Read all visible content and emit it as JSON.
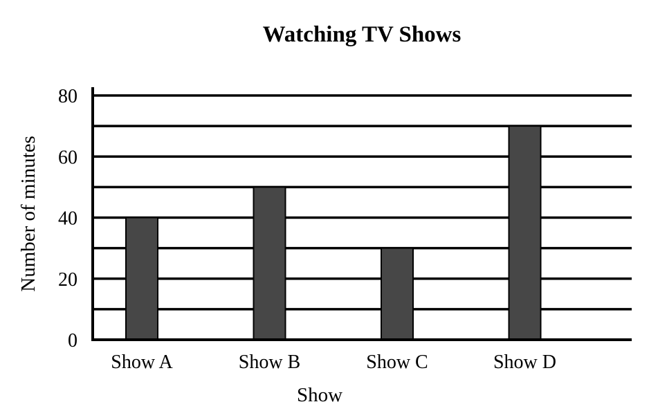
{
  "chart_data": {
    "type": "bar",
    "title": "Watching TV Shows",
    "xlabel": "Show",
    "ylabel": "Number of minutes",
    "categories": [
      "Show A",
      "Show B",
      "Show C",
      "Show D"
    ],
    "values": [
      40,
      50,
      30,
      70
    ],
    "ylim": [
      0,
      80
    ],
    "yticks": [
      0,
      20,
      40,
      60,
      80
    ],
    "gridlines": [
      10,
      20,
      30,
      40,
      50,
      60,
      70,
      80
    ],
    "grid": true,
    "bar_color": "#474747"
  }
}
